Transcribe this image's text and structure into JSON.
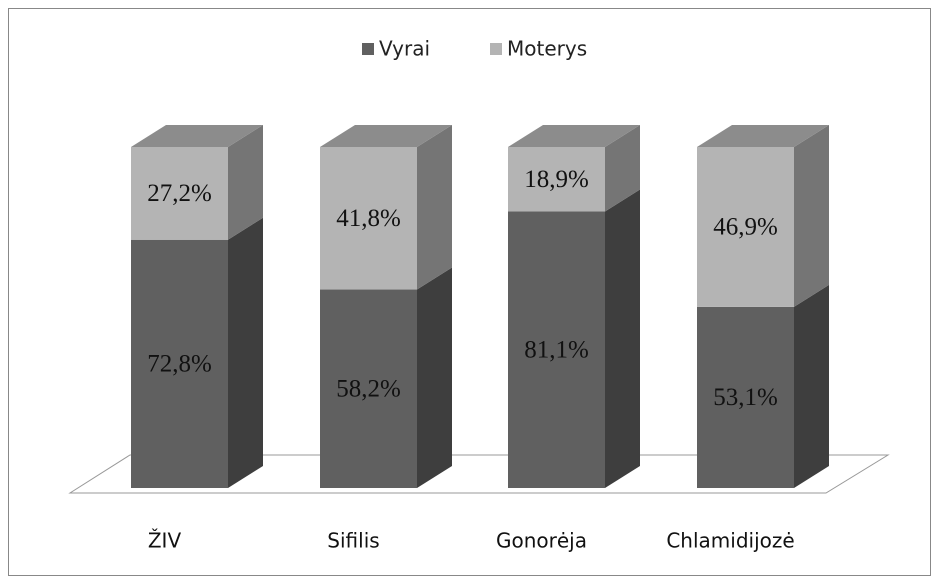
{
  "chart_data": {
    "type": "bar",
    "stacked": true,
    "categories": [
      "ŽIV",
      "Sifilis",
      "Gonorėja",
      "Chlamidijozė"
    ],
    "series": [
      {
        "name": "Vyrai",
        "color": "#606060",
        "values": [
          72.8,
          58.2,
          81.1,
          53.1
        ],
        "value_labels": [
          "72,8%",
          "58,2%",
          "81,1%",
          "53,1%"
        ]
      },
      {
        "name": "Moterys",
        "color": "#b4b4b4",
        "values": [
          27.2,
          41.8,
          18.9,
          46.9
        ],
        "value_labels": [
          "27,2%",
          "41,8%",
          "18,9%",
          "46,9%"
        ]
      }
    ],
    "ylim": [
      0,
      100
    ],
    "legend": "top"
  }
}
